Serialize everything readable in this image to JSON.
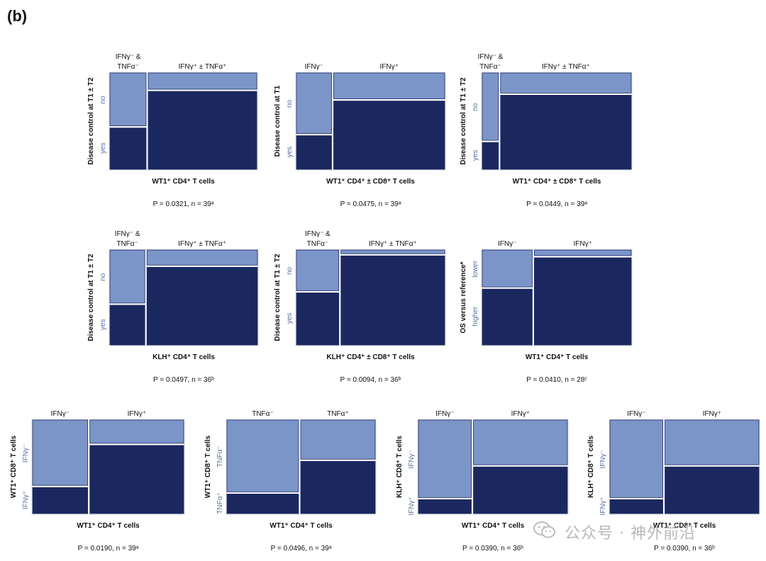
{
  "panel_label": "(b)",
  "colors": {
    "light": "#7b95c9",
    "dark": "#1b2860",
    "border": "#d8dbe2"
  },
  "watermark": {
    "text": "公众号 · 神外前沿",
    "icon": "wechat-icon"
  },
  "chart_data": [
    {
      "type": "mosaic",
      "ylabel": "Disease control at T1 ± T2",
      "xlabel": "WT1⁺ CD4⁺ T cells",
      "stat": "P = 0.0321, n = 39ᵃ",
      "row_labels": [
        "no",
        "yes"
      ],
      "columns": [
        {
          "label": "IFNγ⁻ &\nTNFα⁻",
          "width": 0.25,
          "light": 0.56
        },
        {
          "label": "IFNγ⁺ ± TNFα⁺",
          "width": 0.75,
          "light": 0.18
        }
      ]
    },
    {
      "type": "mosaic",
      "ylabel": "Disease control at T1",
      "xlabel": "WT1⁺ CD4⁺ ± CD8⁺ T cells",
      "stat": "P = 0.0475, n = 39ᵃ",
      "row_labels": [
        "no",
        "yes"
      ],
      "columns": [
        {
          "label": "IFNγ⁻",
          "width": 0.24,
          "light": 0.64
        },
        {
          "label": "IFNγ⁺",
          "width": 0.76,
          "light": 0.28
        }
      ]
    },
    {
      "type": "mosaic",
      "ylabel": "Disease control at T1 ± T2",
      "xlabel": "WT1⁺ CD4⁺ ± CD8⁺ T cells",
      "stat": "P = 0.0449, n = 39ᵃ",
      "row_labels": [
        "no",
        "yes"
      ],
      "columns": [
        {
          "label": "IFNγ⁻ &\nTNFα⁻",
          "width": 0.11,
          "light": 0.71
        },
        {
          "label": "IFNγ⁺ ± TNFα⁺",
          "width": 0.89,
          "light": 0.22
        }
      ]
    },
    {
      "type": "mosaic",
      "ylabel": "Disease control at T1 ± T2",
      "xlabel": "KLH⁺ CD4⁺ T cells",
      "stat": "P = 0.0497, n = 36ᵇ",
      "row_labels": [
        "no",
        "yes"
      ],
      "columns": [
        {
          "label": "IFNγ⁻ &\nTNFα⁻",
          "width": 0.24,
          "light": 0.57
        },
        {
          "label": "IFNγ⁺ ± TNFα⁺",
          "width": 0.76,
          "light": 0.17
        }
      ]
    },
    {
      "type": "mosaic",
      "ylabel": "Disease control at T1 ± T2",
      "xlabel": "KLH⁺ CD4⁺ ± CD8⁺ T cells",
      "stat": "P = 0.0094, n = 36ᵇ",
      "row_labels": [
        "no",
        "yes"
      ],
      "columns": [
        {
          "label": "IFNγ⁻ &\nTNFα⁻",
          "width": 0.29,
          "light": 0.44
        },
        {
          "label": "IFNγ⁺ ± TNFα⁺",
          "width": 0.71,
          "light": 0.05
        }
      ]
    },
    {
      "type": "mosaic",
      "ylabel": "OS versus reference*",
      "xlabel": "WT1⁺ CD4⁺ T cells",
      "stat": "P = 0.0410, n = 28ᶜ",
      "row_labels": [
        "lower",
        "higher"
      ],
      "columns": [
        {
          "label": "IFNγ⁻",
          "width": 0.34,
          "light": 0.4
        },
        {
          "label": "IFNγ⁺",
          "width": 0.66,
          "light": 0.07
        }
      ]
    },
    {
      "type": "mosaic",
      "ylabel": "WT1⁺ CD8⁺ T cells",
      "xlabel": "WT1⁺ CD4⁺ T cells",
      "stat": "P = 0.0190, n = 39ᵃ",
      "row_labels": [
        "IFNγ⁻",
        "IFNγ⁺"
      ],
      "columns": [
        {
          "label": "IFNγ⁻",
          "width": 0.37,
          "light": 0.71
        },
        {
          "label": "IFNγ⁺",
          "width": 0.63,
          "light": 0.26
        }
      ]
    },
    {
      "type": "mosaic",
      "ylabel": "WT1⁺ CD8⁺ T cells",
      "xlabel": "WT1⁺ CD4⁺ T cells",
      "stat": "P = 0.0496, n = 39ᵃ",
      "row_labels": [
        "TNFα⁻",
        "TNFα⁺"
      ],
      "columns": [
        {
          "label": "TNFα⁻",
          "width": 0.49,
          "light": 0.78
        },
        {
          "label": "TNFα⁺",
          "width": 0.51,
          "light": 0.43
        }
      ]
    },
    {
      "type": "mosaic",
      "ylabel": "KLH⁺ CD8⁺ T cells",
      "xlabel": "WT1⁺ CD4⁺ T cells",
      "stat": "P = 0.0390, n = 36ᵇ",
      "row_labels": [
        "IFNγ⁻",
        "IFNγ⁺"
      ],
      "columns": [
        {
          "label": "IFNγ⁻",
          "width": 0.36,
          "light": 0.84
        },
        {
          "label": "IFNγ⁺",
          "width": 0.64,
          "light": 0.49
        }
      ]
    },
    {
      "type": "mosaic",
      "ylabel": "KLH⁺ CD8⁺ T cells",
      "xlabel": "WT1⁺ CD8⁺ T cells",
      "stat": "P = 0.0390, n = 36ᵇ",
      "row_labels": [
        "IFNγ⁻",
        "IFNγ⁺"
      ],
      "columns": [
        {
          "label": "IFNγ⁻",
          "width": 0.36,
          "light": 0.84
        },
        {
          "label": "IFNγ⁺",
          "width": 0.64,
          "light": 0.49
        }
      ]
    }
  ]
}
